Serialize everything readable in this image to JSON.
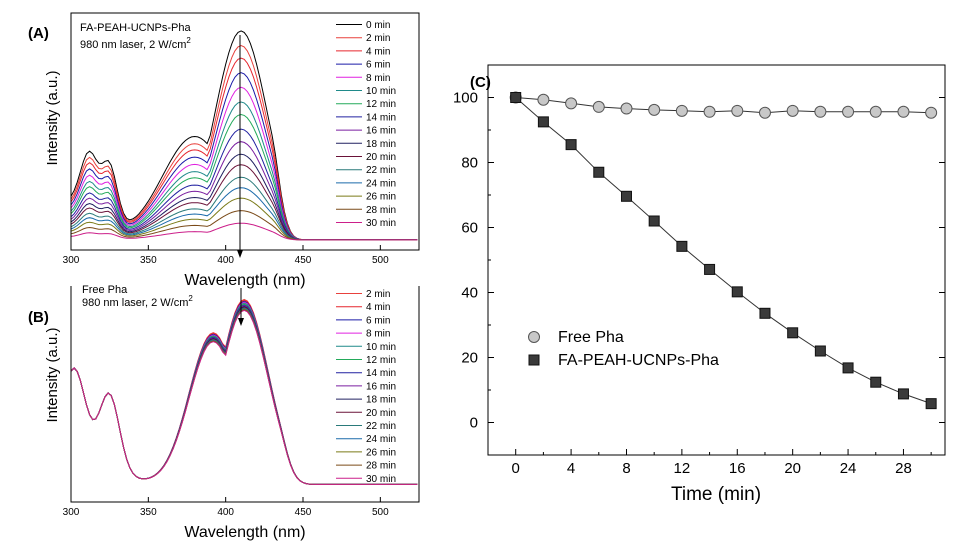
{
  "colors": {
    "palette": [
      "#000000",
      "#e8413c",
      "#e6262e",
      "#1a1aa8",
      "#e020e0",
      "#1f8a8a",
      "#23aa5a",
      "#2020a0",
      "#7a1fa0",
      "#202060",
      "#6a1238",
      "#2a7a7a",
      "#1a6aaa",
      "#7a7a18",
      "#7a4a18",
      "#cc1f8a",
      "#1fa8b8"
    ]
  },
  "chart_data": [
    {
      "panel": "A",
      "panel_label": "(A)",
      "type": "line",
      "title": "FA-PEAH-UCNPs-Pha",
      "subtitle": "980 nm laser, 2 W/cm",
      "subtitle_sup": "2",
      "xlabel": "Wavelength (nm)",
      "ylabel": "Intensity (a.u.)",
      "xlim": [
        300,
        525
      ],
      "xticks": [
        "300",
        "350",
        "400",
        "450",
        "500"
      ],
      "xtick_values": [
        300,
        350,
        400,
        450,
        500
      ],
      "peak_wavelength": 410,
      "legend": [
        "0 min",
        "2 min",
        "4 min",
        "6 min",
        "8 min",
        "10 min",
        "12 min",
        "14 min",
        "16 min",
        "18 min",
        "20 min",
        "22 min",
        "24 min",
        "26 min",
        "28 min",
        "30 min"
      ],
      "peak_intensities": [
        1.0,
        0.93,
        0.87,
        0.8,
        0.73,
        0.66,
        0.6,
        0.53,
        0.47,
        0.41,
        0.36,
        0.3,
        0.25,
        0.2,
        0.14,
        0.08
      ],
      "band_ratio_300_330": 0.3
    },
    {
      "panel": "B",
      "panel_label": "(B)",
      "type": "line",
      "title": "Free Pha",
      "subtitle": "980 nm laser, 2 W/cm",
      "subtitle_sup": "2",
      "xlabel": "Wavelength (nm)",
      "ylabel": "Intensity (a.u.)",
      "xlim": [
        300,
        525
      ],
      "xticks": [
        "300",
        "350",
        "400",
        "450",
        "500"
      ],
      "xtick_values": [
        300,
        350,
        400,
        450,
        500
      ],
      "peak_wavelength": 412,
      "legend": [
        "2 min",
        "4 min",
        "6 min",
        "8 min",
        "10 min",
        "12 min",
        "14 min",
        "16 min",
        "18 min",
        "20 min",
        "22 min",
        "24 min",
        "26 min",
        "28 min",
        "30 min"
      ],
      "peak_intensities": [
        1.0,
        0.995,
        0.99,
        0.985,
        0.98,
        0.975,
        0.97,
        0.966,
        0.962,
        0.958,
        0.954,
        0.95,
        0.947,
        0.944,
        0.941
      ]
    },
    {
      "panel": "C",
      "panel_label": "(C)",
      "type": "scatter",
      "xlabel": "Time (min)",
      "ylabel": "",
      "xlim": [
        -2,
        31
      ],
      "ylim": [
        -10,
        110
      ],
      "xticks": [
        "0",
        "4",
        "8",
        "12",
        "16",
        "20",
        "24",
        "28"
      ],
      "xtick_values": [
        0,
        4,
        8,
        12,
        16,
        20,
        24,
        28
      ],
      "yticks": [
        "0",
        "20",
        "40",
        "60",
        "80",
        "100"
      ],
      "ytick_values": [
        0,
        20,
        40,
        60,
        80,
        100
      ],
      "x": [
        0,
        2,
        4,
        6,
        8,
        10,
        12,
        14,
        16,
        18,
        20,
        22,
        24,
        26,
        28,
        30
      ],
      "series": [
        {
          "name": "Free Pha",
          "marker": "circle",
          "values": [
            100,
            99.3,
            98.2,
            97.1,
            96.6,
            96.2,
            95.9,
            95.6,
            95.9,
            95.3,
            95.9,
            95.6,
            95.6,
            95.6,
            95.6,
            95.3
          ]
        },
        {
          "name": "FA-PEAH-UCNPs-Pha",
          "marker": "square",
          "values": [
            100,
            92.5,
            85.5,
            77,
            69.6,
            62,
            54.2,
            47.1,
            40.2,
            33.6,
            27.6,
            22,
            16.8,
            12.4,
            8.8,
            5.8
          ]
        }
      ]
    }
  ]
}
